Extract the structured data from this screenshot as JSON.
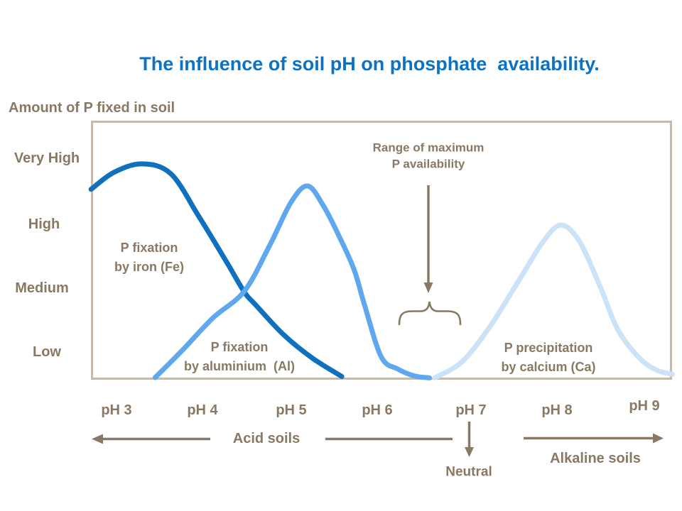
{
  "title": "The influence of soil pH on phosphate  availability.",
  "axis": {
    "y_title": "Amount of P fixed in soil"
  },
  "annotations": {
    "range_line1": "Range of maximum",
    "range_line2": "P availability",
    "acid_soils": "Acid soils",
    "neutral": "Neutral",
    "alkaline_soils": "Alkaline soils"
  },
  "curve_labels": {
    "fe_line1": "P fixation",
    "fe_line2": "by iron (Fe)",
    "al_line1": "P fixation",
    "al_line2": "by aluminium  (Al)",
    "ca_line1": "P precipitation",
    "ca_line2": "by calcium (Ca)"
  },
  "colors": {
    "title_blue": "#0B72C4",
    "label_taupe": "#897863",
    "frame_tan": "#C6BAAC",
    "fe_curve": "#0F70BD",
    "al_curve": "#5FA8EE",
    "ca_curve": "#CBE2F8"
  },
  "chart_data": {
    "type": "line",
    "title": "The influence of soil pH on phosphate  availability.",
    "xlabel": "pH",
    "ylabel": "Amount of P fixed in soil",
    "x_tick_labels": [
      "pH 3",
      "pH 4",
      "pH 5",
      "pH 6",
      "pH 7",
      "pH 8",
      "pH 9"
    ],
    "y_tick_labels": [
      "Very High",
      "High",
      "Medium",
      "Low"
    ],
    "xlim": [
      2.7,
      9.35
    ],
    "ylim": [
      0,
      100
    ],
    "grid": false,
    "legend_position": "none",
    "series": [
      {
        "name": "P fixation by iron (Fe)",
        "color": "#0F70BD",
        "points": [
          [
            2.71,
            84
          ],
          [
            2.97,
            91.5
          ],
          [
            3.29,
            95.3
          ],
          [
            3.62,
            90.9
          ],
          [
            3.94,
            71.9
          ],
          [
            4.26,
            51.4
          ],
          [
            4.46,
            38.2
          ],
          [
            4.59,
            32.5
          ],
          [
            4.91,
            19.2
          ],
          [
            5.24,
            8.8
          ],
          [
            5.57,
            0.8
          ]
        ]
      },
      {
        "name": "P fixation by aluminium (Al)",
        "color": "#5FA8EE",
        "points": [
          [
            3.44,
            0.3
          ],
          [
            3.74,
            12
          ],
          [
            4.1,
            26.8
          ],
          [
            4.46,
            38.8
          ],
          [
            4.75,
            59.3
          ],
          [
            4.99,
            78.2
          ],
          [
            5.18,
            85.5
          ],
          [
            5.36,
            76.7
          ],
          [
            5.54,
            63.1
          ],
          [
            5.71,
            48.3
          ],
          [
            5.83,
            32.5
          ],
          [
            6.02,
            9.5
          ],
          [
            6.21,
            4.1
          ],
          [
            6.4,
            1
          ],
          [
            6.57,
            0.2
          ]
        ]
      },
      {
        "name": "P precipitation by calcium (Ca)",
        "color": "#CBE2F8",
        "points": [
          [
            6.63,
            0.2
          ],
          [
            6.94,
            7.3
          ],
          [
            7.26,
            23
          ],
          [
            7.59,
            43.5
          ],
          [
            7.87,
            60.9
          ],
          [
            8.07,
            68.1
          ],
          [
            8.28,
            60.9
          ],
          [
            8.52,
            40.4
          ],
          [
            8.72,
            21.5
          ],
          [
            8.97,
            8.8
          ],
          [
            9.17,
            3.5
          ],
          [
            9.34,
            1.8
          ]
        ]
      }
    ]
  }
}
